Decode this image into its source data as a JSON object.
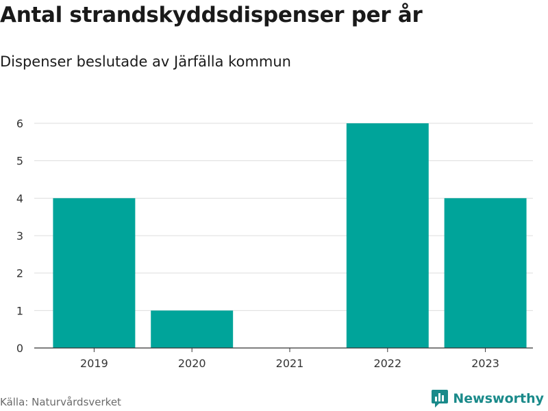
{
  "chart_data": {
    "type": "bar",
    "title": "Antal strandskyddsdispenser per år",
    "subtitle": "Dispenser beslutade av Järfälla kommun",
    "categories": [
      "2019",
      "2020",
      "2021",
      "2022",
      "2023"
    ],
    "values": [
      4,
      1,
      0,
      6,
      4
    ],
    "xlabel": "",
    "ylabel": "",
    "ylim": [
      0,
      6
    ],
    "yticks": [
      0,
      1,
      2,
      3,
      4,
      5,
      6
    ],
    "grid": true,
    "bar_color": "#00a49a"
  },
  "footer": {
    "source": "Källa: Naturvårdsverket",
    "brand": "Newsworthy"
  },
  "colors": {
    "grid": "#dddddd",
    "axis": "#333333",
    "brand": "#1a8a8a"
  }
}
